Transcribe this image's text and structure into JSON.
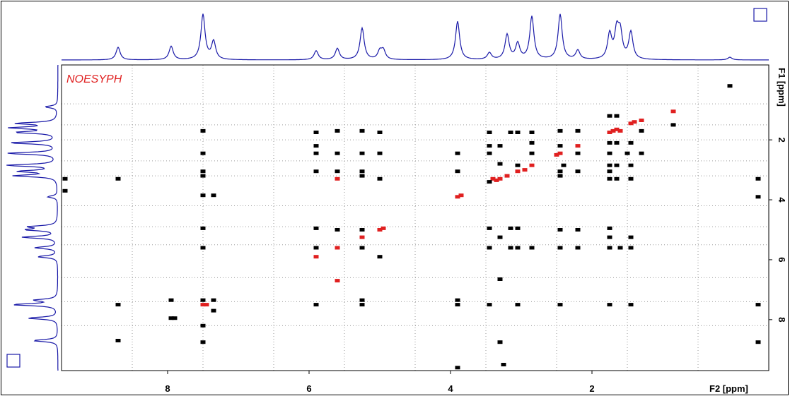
{
  "chart_data": {
    "type": "scatter",
    "title": "",
    "pulse_program": "NOESYPH",
    "xlabel": "F2 [ppm]",
    "ylabel": "F1 [ppm]",
    "xlim": [
      9.5,
      -0.5
    ],
    "ylim": [
      -0.5,
      9.7
    ],
    "x_axis_reversed": true,
    "y_axis_downward": true,
    "x_ticks": [
      "8",
      "6",
      "4",
      "2"
    ],
    "x_tick_values": [
      8,
      6,
      4,
      2
    ],
    "y_ticks": [
      "2",
      "4",
      "6",
      "8"
    ],
    "y_tick_values": [
      2,
      4,
      6,
      8
    ],
    "grid": true,
    "grid_x_values": [
      8.5,
      7.5,
      6.5,
      5.5,
      4.5,
      3.5,
      2.5,
      1.5,
      0.5
    ],
    "grid_y_values": [
      0.8,
      1.5,
      2.0,
      2.7,
      3.2,
      4.2,
      4.9,
      5.5,
      6.6,
      7.4,
      8.2
    ],
    "colors": {
      "frame": "#000000",
      "projection": "#1a1aa8",
      "positive": "#000000",
      "negative": "#e02020",
      "grid": "#9a9a9a",
      "title": "#e02020"
    },
    "f2_projection_peaks": [
      {
        "x": 8.7,
        "h": 0.28
      },
      {
        "x": 7.95,
        "h": 0.3
      },
      {
        "x": 7.5,
        "h": 1.0
      },
      {
        "x": 7.35,
        "h": 0.4
      },
      {
        "x": 5.9,
        "h": 0.2
      },
      {
        "x": 5.6,
        "h": 0.25
      },
      {
        "x": 5.25,
        "h": 0.7
      },
      {
        "x": 5.0,
        "h": 0.18
      },
      {
        "x": 4.95,
        "h": 0.2
      },
      {
        "x": 3.9,
        "h": 0.85
      },
      {
        "x": 3.45,
        "h": 0.15
      },
      {
        "x": 3.2,
        "h": 0.55
      },
      {
        "x": 3.05,
        "h": 0.35
      },
      {
        "x": 2.85,
        "h": 0.95
      },
      {
        "x": 2.45,
        "h": 1.0
      },
      {
        "x": 2.2,
        "h": 0.2
      },
      {
        "x": 1.75,
        "h": 0.55
      },
      {
        "x": 1.65,
        "h": 0.6
      },
      {
        "x": 1.6,
        "h": 0.55
      },
      {
        "x": 1.45,
        "h": 0.6
      },
      {
        "x": 0.05,
        "h": 0.06
      }
    ],
    "f1_projection_peaks": [
      {
        "y": 0.9,
        "h": 0.25
      },
      {
        "y": 1.45,
        "h": 0.8
      },
      {
        "y": 1.6,
        "h": 0.9
      },
      {
        "y": 1.75,
        "h": 0.8
      },
      {
        "y": 2.1,
        "h": 0.95
      },
      {
        "y": 2.45,
        "h": 1.0
      },
      {
        "y": 2.85,
        "h": 1.0
      },
      {
        "y": 3.05,
        "h": 0.75
      },
      {
        "y": 3.2,
        "h": 0.85
      },
      {
        "y": 3.9,
        "h": 0.2
      },
      {
        "y": 4.9,
        "h": 0.55
      },
      {
        "y": 5.0,
        "h": 0.6
      },
      {
        "y": 5.25,
        "h": 0.7
      },
      {
        "y": 5.6,
        "h": 0.45
      },
      {
        "y": 5.9,
        "h": 0.4
      },
      {
        "y": 7.35,
        "h": 0.45
      },
      {
        "y": 7.5,
        "h": 0.9
      },
      {
        "y": 7.95,
        "h": 0.6
      },
      {
        "y": 8.7,
        "h": 0.5
      }
    ],
    "series": [
      {
        "sign": "negative",
        "points": [
          {
            "x": 8.7,
            "y": 8.7
          },
          {
            "x": 7.5,
            "y": 7.5
          },
          {
            "x": 7.45,
            "y": 7.5
          },
          {
            "x": 5.9,
            "y": 5.9
          },
          {
            "x": 5.6,
            "y": 5.6
          },
          {
            "x": 5.25,
            "y": 5.25
          },
          {
            "x": 5.0,
            "y": 5.0
          },
          {
            "x": 4.95,
            "y": 4.95
          },
          {
            "x": 5.6,
            "y": 3.3
          },
          {
            "x": 3.9,
            "y": 3.9
          },
          {
            "x": 3.85,
            "y": 3.85
          },
          {
            "x": 3.4,
            "y": 3.3
          },
          {
            "x": 3.35,
            "y": 3.35
          },
          {
            "x": 3.3,
            "y": 3.3
          },
          {
            "x": 3.2,
            "y": 3.2
          },
          {
            "x": 3.05,
            "y": 3.05
          },
          {
            "x": 2.95,
            "y": 3.0
          },
          {
            "x": 2.85,
            "y": 2.85
          },
          {
            "x": 2.5,
            "y": 2.5
          },
          {
            "x": 2.45,
            "y": 2.45
          },
          {
            "x": 2.2,
            "y": 2.2
          },
          {
            "x": 1.75,
            "y": 1.75
          },
          {
            "x": 1.7,
            "y": 1.7
          },
          {
            "x": 1.65,
            "y": 1.65
          },
          {
            "x": 1.6,
            "y": 1.7
          },
          {
            "x": 1.45,
            "y": 1.45
          },
          {
            "x": 1.4,
            "y": 1.4
          },
          {
            "x": 1.3,
            "y": 1.35
          },
          {
            "x": 0.85,
            "y": 1.05
          },
          {
            "x": 5.6,
            "y": 6.7
          }
        ]
      },
      {
        "sign": "positive",
        "points": [
          {
            "x": 7.5,
            "y": 1.7
          },
          {
            "x": 7.5,
            "y": 2.45
          },
          {
            "x": 7.5,
            "y": 3.05
          },
          {
            "x": 7.5,
            "y": 3.2
          },
          {
            "x": 7.5,
            "y": 3.85
          },
          {
            "x": 7.35,
            "y": 3.85
          },
          {
            "x": 7.5,
            "y": 4.95
          },
          {
            "x": 7.5,
            "y": 5.6
          },
          {
            "x": 7.5,
            "y": 7.35
          },
          {
            "x": 7.35,
            "y": 7.35
          },
          {
            "x": 7.5,
            "y": 8.2
          },
          {
            "x": 7.5,
            "y": 8.75
          },
          {
            "x": 7.35,
            "y": 7.7
          },
          {
            "x": 7.95,
            "y": 7.35
          },
          {
            "x": 7.95,
            "y": 7.95
          },
          {
            "x": 7.9,
            "y": 7.95
          },
          {
            "x": 8.7,
            "y": 3.3
          },
          {
            "x": 8.7,
            "y": 7.5
          },
          {
            "x": 8.7,
            "y": 8.7
          },
          {
            "x": 5.9,
            "y": 1.75
          },
          {
            "x": 5.9,
            "y": 2.2
          },
          {
            "x": 5.9,
            "y": 2.45
          },
          {
            "x": 5.9,
            "y": 3.05
          },
          {
            "x": 5.9,
            "y": 4.95
          },
          {
            "x": 5.9,
            "y": 5.6
          },
          {
            "x": 5.9,
            "y": 7.5
          },
          {
            "x": 5.6,
            "y": 1.7
          },
          {
            "x": 5.6,
            "y": 2.45
          },
          {
            "x": 5.6,
            "y": 3.05
          },
          {
            "x": 5.6,
            "y": 5.0
          },
          {
            "x": 5.25,
            "y": 1.7
          },
          {
            "x": 5.25,
            "y": 2.45
          },
          {
            "x": 5.25,
            "y": 3.05
          },
          {
            "x": 5.25,
            "y": 3.2
          },
          {
            "x": 5.25,
            "y": 5.0
          },
          {
            "x": 5.25,
            "y": 5.6
          },
          {
            "x": 5.25,
            "y": 7.35
          },
          {
            "x": 5.25,
            "y": 7.5
          },
          {
            "x": 5.0,
            "y": 1.75
          },
          {
            "x": 5.0,
            "y": 2.45
          },
          {
            "x": 5.0,
            "y": 3.3
          },
          {
            "x": 5.0,
            "y": 5.9
          },
          {
            "x": 3.9,
            "y": 2.45
          },
          {
            "x": 3.9,
            "y": 3.05
          },
          {
            "x": 3.9,
            "y": 7.35
          },
          {
            "x": 3.9,
            "y": 7.5
          },
          {
            "x": 3.9,
            "y": 9.6
          },
          {
            "x": 3.45,
            "y": 1.75
          },
          {
            "x": 3.45,
            "y": 2.2
          },
          {
            "x": 3.45,
            "y": 2.45
          },
          {
            "x": 3.45,
            "y": 3.4
          },
          {
            "x": 3.45,
            "y": 4.95
          },
          {
            "x": 3.45,
            "y": 5.6
          },
          {
            "x": 3.45,
            "y": 7.5
          },
          {
            "x": 3.3,
            "y": 2.2
          },
          {
            "x": 3.3,
            "y": 2.8
          },
          {
            "x": 3.3,
            "y": 5.25
          },
          {
            "x": 3.3,
            "y": 6.65
          },
          {
            "x": 3.3,
            "y": 8.75
          },
          {
            "x": 3.25,
            "y": 9.5
          },
          {
            "x": 3.15,
            "y": 1.75
          },
          {
            "x": 3.15,
            "y": 4.95
          },
          {
            "x": 3.15,
            "y": 5.6
          },
          {
            "x": 3.05,
            "y": 1.75
          },
          {
            "x": 3.05,
            "y": 2.85
          },
          {
            "x": 3.05,
            "y": 4.95
          },
          {
            "x": 3.05,
            "y": 5.6
          },
          {
            "x": 3.05,
            "y": 7.5
          },
          {
            "x": 2.85,
            "y": 1.75
          },
          {
            "x": 2.85,
            "y": 2.1
          },
          {
            "x": 2.85,
            "y": 2.45
          },
          {
            "x": 2.85,
            "y": 5.6
          },
          {
            "x": 2.45,
            "y": 1.7
          },
          {
            "x": 2.45,
            "y": 2.2
          },
          {
            "x": 2.45,
            "y": 3.05
          },
          {
            "x": 2.45,
            "y": 3.2
          },
          {
            "x": 2.45,
            "y": 5.0
          },
          {
            "x": 2.45,
            "y": 5.6
          },
          {
            "x": 2.45,
            "y": 7.5
          },
          {
            "x": 2.4,
            "y": 2.85
          },
          {
            "x": 2.2,
            "y": 1.7
          },
          {
            "x": 2.2,
            "y": 2.45
          },
          {
            "x": 2.2,
            "y": 3.05
          },
          {
            "x": 2.2,
            "y": 5.0
          },
          {
            "x": 2.2,
            "y": 5.6
          },
          {
            "x": 1.75,
            "y": 1.2
          },
          {
            "x": 1.75,
            "y": 2.1
          },
          {
            "x": 1.75,
            "y": 2.45
          },
          {
            "x": 1.75,
            "y": 2.85
          },
          {
            "x": 1.75,
            "y": 3.05
          },
          {
            "x": 1.75,
            "y": 3.3
          },
          {
            "x": 1.75,
            "y": 4.95
          },
          {
            "x": 1.75,
            "y": 5.25
          },
          {
            "x": 1.75,
            "y": 5.6
          },
          {
            "x": 1.75,
            "y": 7.5
          },
          {
            "x": 1.65,
            "y": 1.2
          },
          {
            "x": 1.65,
            "y": 2.1
          },
          {
            "x": 1.65,
            "y": 2.85
          },
          {
            "x": 1.65,
            "y": 3.3
          },
          {
            "x": 1.6,
            "y": 5.6
          },
          {
            "x": 1.5,
            "y": 2.45
          },
          {
            "x": 1.45,
            "y": 2.1
          },
          {
            "x": 1.45,
            "y": 2.85
          },
          {
            "x": 1.45,
            "y": 3.3
          },
          {
            "x": 1.45,
            "y": 5.25
          },
          {
            "x": 1.45,
            "y": 5.6
          },
          {
            "x": 1.45,
            "y": 7.5
          },
          {
            "x": 1.3,
            "y": 1.7
          },
          {
            "x": 1.3,
            "y": 2.45
          },
          {
            "x": 0.85,
            "y": 1.5
          },
          {
            "x": 0.05,
            "y": 0.2
          },
          {
            "x": 9.45,
            "y": 3.3
          },
          {
            "x": 9.45,
            "y": 3.7
          },
          {
            "x": -0.35,
            "y": 3.3
          },
          {
            "x": -0.35,
            "y": 3.9
          },
          {
            "x": -0.35,
            "y": 7.5
          },
          {
            "x": -0.35,
            "y": 8.75
          }
        ]
      }
    ]
  }
}
